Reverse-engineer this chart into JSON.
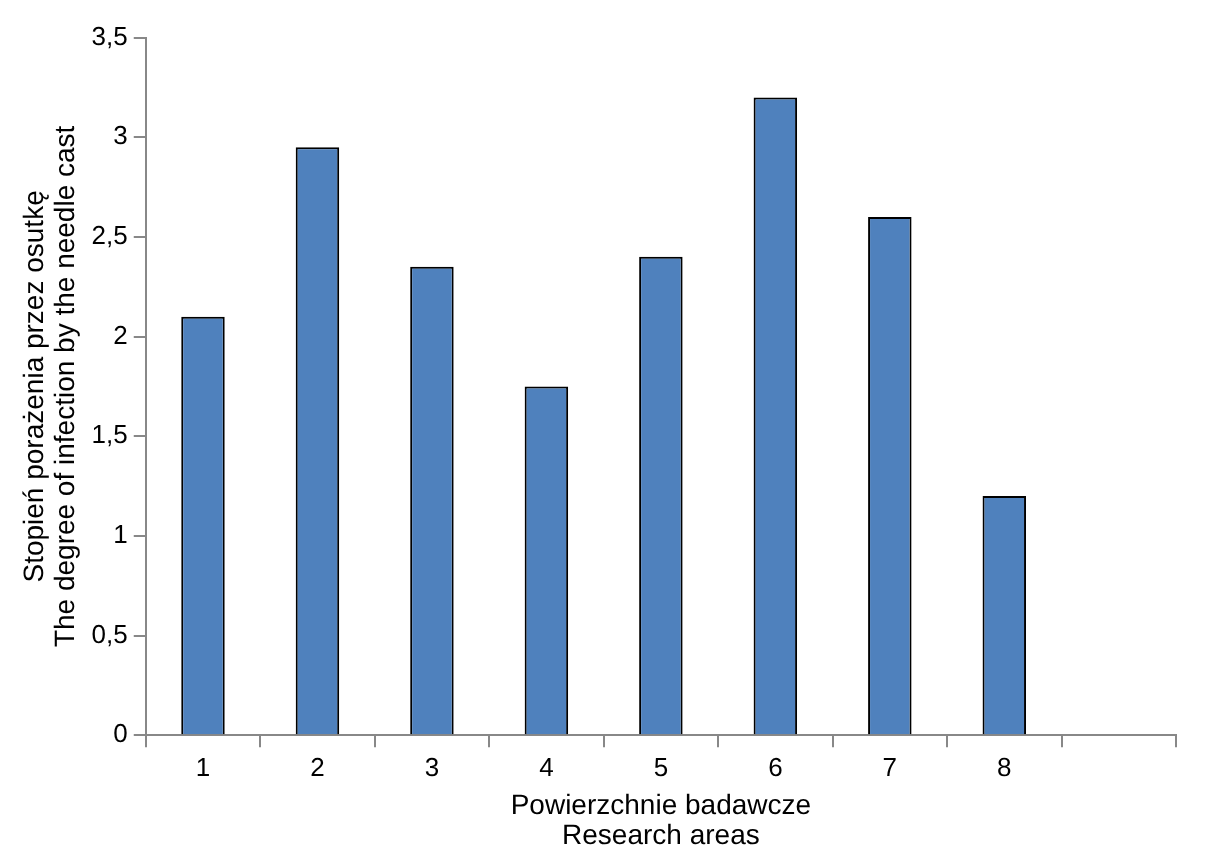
{
  "chart_data": {
    "type": "bar",
    "xlabel": "Powierzchnie badawcze\nResearch areas",
    "ylabel": "Stopień porażenia przez osutkę\nThe degree of infection by the needle cast",
    "categories": [
      "1",
      "2",
      "3",
      "4",
      "5",
      "6",
      "7",
      "8",
      null
    ],
    "values": [
      2.1,
      2.95,
      2.35,
      1.75,
      2.4,
      3.2,
      2.6,
      1.2,
      null
    ],
    "color": "#4f81bd",
    "ylim": [
      0,
      3.5
    ],
    "yticks": [
      0,
      {
        "value": 0.5,
        "label": "0,5"
      },
      1,
      {
        "value": 1.5,
        "label": "1,5"
      },
      2,
      {
        "value": 2.5,
        "label": "2,5"
      },
      3,
      {
        "value": 3.5,
        "label": "3,5"
      }
    ],
    "grid": false,
    "legend": false
  }
}
